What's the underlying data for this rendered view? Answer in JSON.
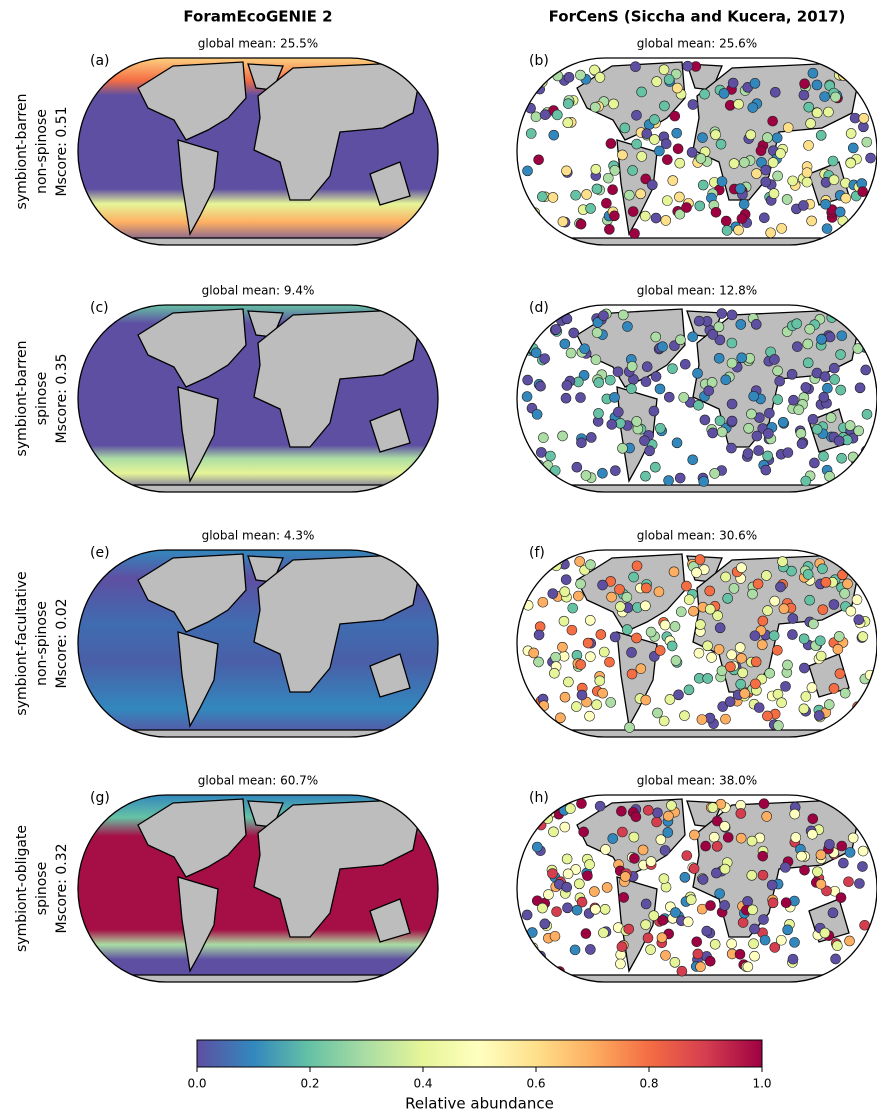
{
  "column_titles": [
    "ForamEcoGENIE 2",
    "ForCenS (Siccha and Kucera, 2017)"
  ],
  "rows": [
    {
      "label_lines": [
        "symbiont-barren",
        "non-spinose",
        "Mscore: 0.51"
      ],
      "panels": [
        {
          "tag": "(a)",
          "mean": "global mean: 25.5%"
        },
        {
          "tag": "(b)",
          "mean": "global mean: 25.6%"
        }
      ]
    },
    {
      "label_lines": [
        "symbiont-barren",
        "spinose",
        "Mscore: 0.35"
      ],
      "panels": [
        {
          "tag": "(c)",
          "mean": "global mean: 9.4%"
        },
        {
          "tag": "(d)",
          "mean": "global mean: 12.8%"
        }
      ]
    },
    {
      "label_lines": [
        "symbiont-facultative",
        "non-spinose",
        "Mscore: 0.02"
      ],
      "panels": [
        {
          "tag": "(e)",
          "mean": "global mean: 4.3%"
        },
        {
          "tag": "(f)",
          "mean": "global mean: 30.6%"
        }
      ]
    },
    {
      "label_lines": [
        "symbiont-obligate",
        "spinose",
        "Mscore: 0.32"
      ],
      "panels": [
        {
          "tag": "(g)",
          "mean": "global mean: 60.7%"
        },
        {
          "tag": "(h)",
          "mean": "global mean: 38.0%"
        }
      ]
    }
  ],
  "colorbar": {
    "label": "Relative abundance",
    "lim": [
      0,
      1
    ],
    "ticks": [
      {
        "value": 0,
        "label": "0.0"
      },
      0.2,
      0.4,
      0.6,
      0.8,
      {
        "value": 1,
        "label": "1.0"
      }
    ]
  }
}
